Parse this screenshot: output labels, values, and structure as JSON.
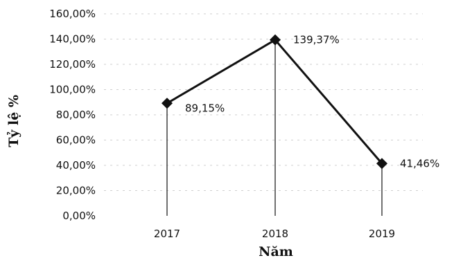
{
  "chart_data": {
    "type": "line",
    "title": "",
    "xlabel": "Năm",
    "ylabel": "Tỷ lệ %",
    "categories": [
      "2017",
      "2018",
      "2019"
    ],
    "series": [
      {
        "values": [
          89.15,
          139.37,
          41.46
        ]
      }
    ],
    "data_labels": [
      "89,15%",
      "139,37%",
      "41,46%"
    ],
    "yticks": [
      "0,00%",
      "20,00%",
      "40,00%",
      "60,00%",
      "80,00%",
      "100,00%",
      "120,00%",
      "140,00%",
      "160,00%"
    ],
    "ylim": [
      0,
      160
    ],
    "ystep": 20,
    "grid": true,
    "legend": "none",
    "colors": {
      "line": "#111111",
      "grid": "#cfcfcf"
    }
  }
}
